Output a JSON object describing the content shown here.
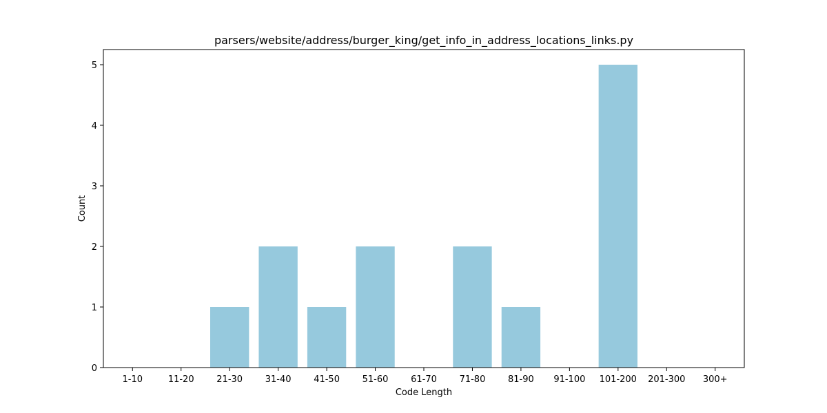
{
  "chart_data": {
    "type": "bar",
    "title": "parsers/website/address/burger_king/get_info_in_address_locations_links.py",
    "xlabel": "Code Length",
    "ylabel": "Count",
    "categories": [
      "1-10",
      "11-20",
      "21-30",
      "31-40",
      "41-50",
      "51-60",
      "61-70",
      "71-80",
      "81-90",
      "91-100",
      "101-200",
      "201-300",
      "300+"
    ],
    "values": [
      0,
      0,
      1,
      2,
      1,
      2,
      0,
      2,
      1,
      0,
      5,
      0,
      0
    ],
    "ylim": [
      0,
      5.25
    ],
    "yticks": [
      0,
      1,
      2,
      3,
      4,
      5
    ],
    "bar_color": "#96c9dd",
    "grid": false,
    "legend": "none"
  }
}
